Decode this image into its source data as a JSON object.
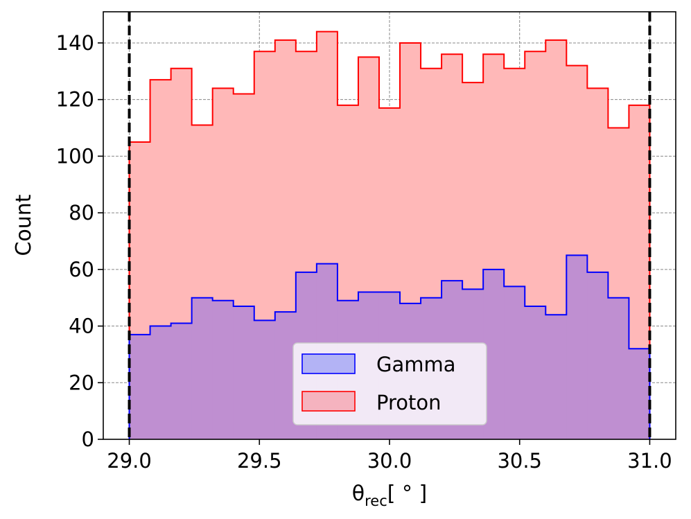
{
  "chart_data": {
    "type": "histogram",
    "xlabel": "θrec[ ° ]",
    "xlabel_parts": {
      "symbol": "θ",
      "subscript": "rec",
      "unit": "[ ° ]"
    },
    "ylabel": "Count",
    "xlim": [
      28.9,
      31.1
    ],
    "ylim": [
      0,
      151
    ],
    "xticks": [
      29.0,
      29.5,
      30.0,
      30.5,
      31.0
    ],
    "xtick_labels": [
      "29.0",
      "29.5",
      "30.0",
      "30.5",
      "31.0"
    ],
    "yticks": [
      0,
      20,
      40,
      60,
      80,
      100,
      120,
      140
    ],
    "ytick_labels": [
      "0",
      "20",
      "40",
      "60",
      "80",
      "100",
      "120",
      "140"
    ],
    "grid": true,
    "legend_position": "bottom-center",
    "bin_edges": [
      29.0,
      29.08,
      29.16,
      29.24,
      29.32,
      29.4,
      29.48,
      29.56,
      29.64,
      29.72,
      29.8,
      29.88,
      29.96,
      30.04,
      30.12,
      30.2,
      30.28,
      30.36,
      30.44,
      30.52,
      30.6,
      30.68,
      30.76,
      30.84,
      30.92,
      31.0
    ],
    "series": [
      {
        "name": "Proton",
        "edge_color": "#ff0000",
        "fill_color": "#ffb8b8",
        "values": [
          105,
          127,
          131,
          111,
          124,
          122,
          137,
          141,
          137,
          144,
          118,
          135,
          117,
          140,
          131,
          136,
          126,
          136,
          131,
          137,
          141,
          132,
          124,
          110,
          118
        ]
      },
      {
        "name": "Gamma",
        "edge_color": "#0000ff",
        "fill_color": "#bf8fd1",
        "values": [
          37,
          40,
          41,
          50,
          49,
          47,
          42,
          45,
          59,
          62,
          49,
          52,
          52,
          48,
          50,
          56,
          53,
          60,
          54,
          47,
          44,
          65,
          59,
          50,
          32
        ]
      }
    ],
    "vertical_lines": [
      29.0,
      31.0
    ],
    "legend": [
      {
        "label": "Gamma",
        "edge_color": "#0000ff",
        "fill_color": "#b3b3f5"
      },
      {
        "label": "Proton",
        "edge_color": "#ff0000",
        "fill_color": "#f5b3bf"
      }
    ]
  }
}
